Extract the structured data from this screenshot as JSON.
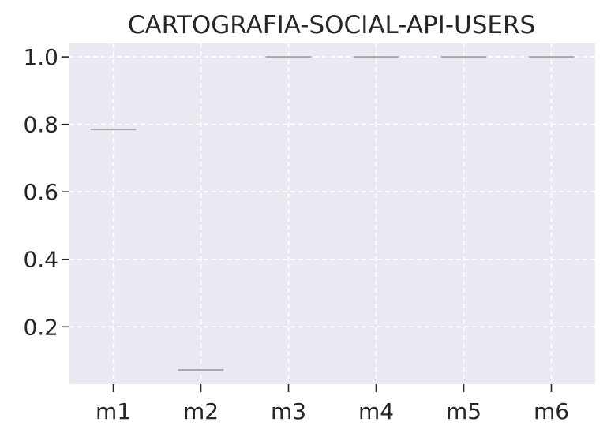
{
  "chart_data": {
    "type": "box",
    "title": "CARTOGRAFIA-SOCIAL-API-USERS",
    "xlabel": "",
    "ylabel": "",
    "categories": [
      "m1",
      "m2",
      "m3",
      "m4",
      "m5",
      "m6"
    ],
    "values": [
      0.785,
      0.072,
      1.0,
      1.0,
      1.0,
      1.0
    ],
    "ylim": [
      0.03,
      1.04
    ],
    "yticks": [
      "0.2",
      "0.4",
      "0.6",
      "0.8",
      "1.0"
    ],
    "grid": true,
    "colors": {
      "plot_bg": "#eaeaf2",
      "grid": "#ffffff",
      "median_line": "#a9a9a9",
      "text": "#262626"
    }
  }
}
